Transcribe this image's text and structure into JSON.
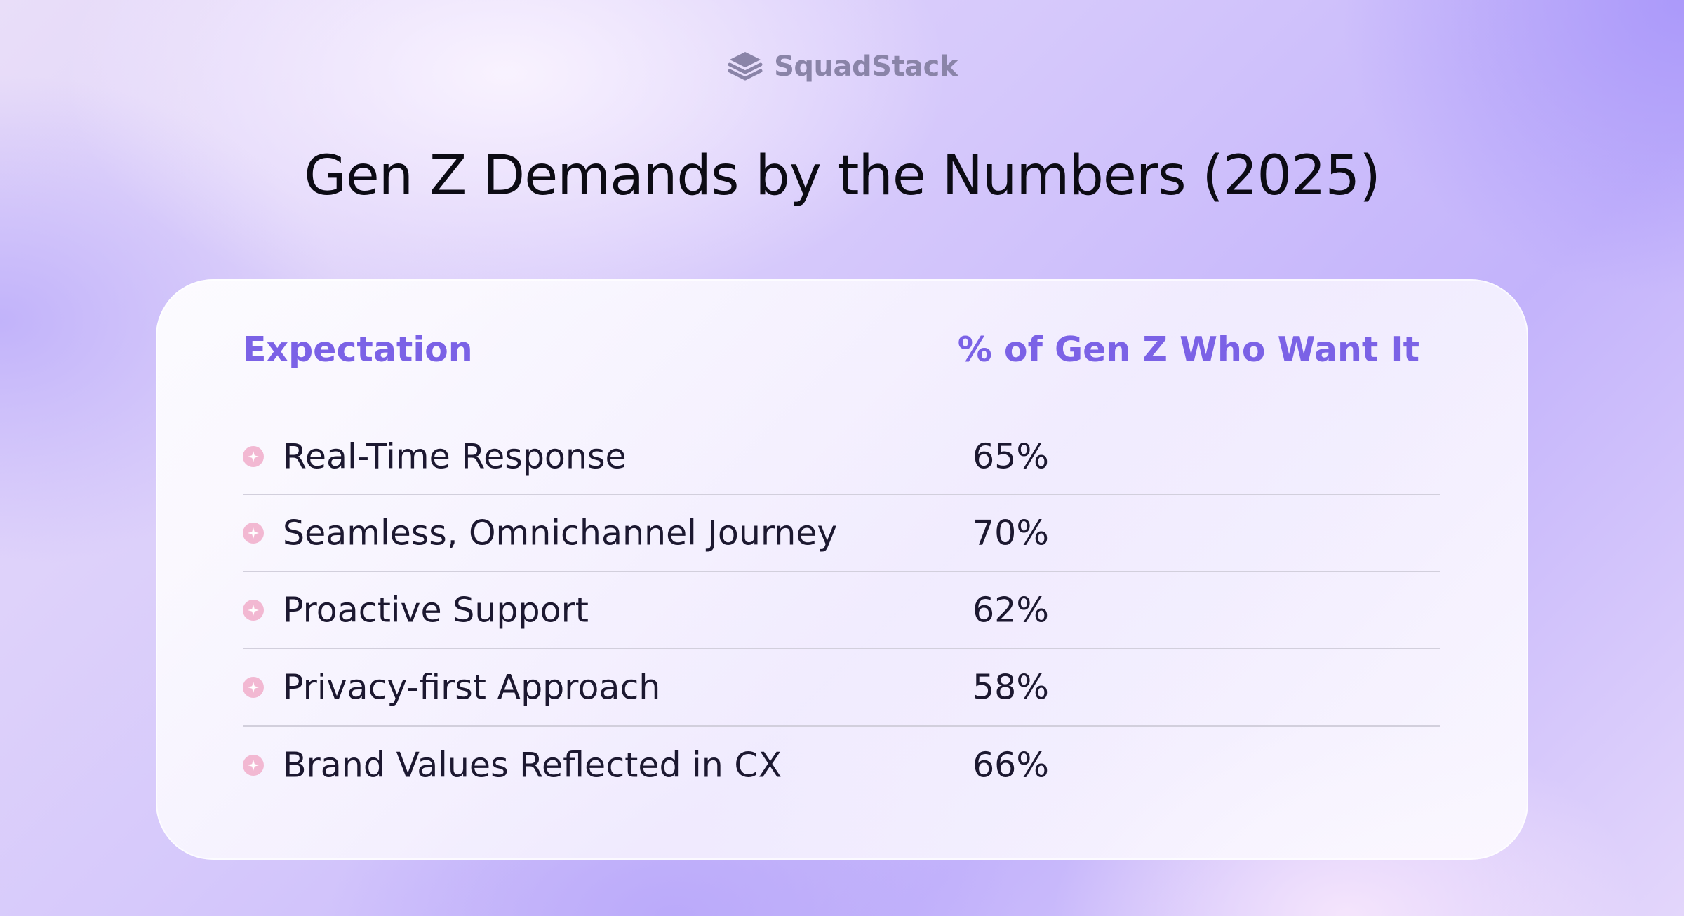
{
  "brand": {
    "name": "SquadStack",
    "logo_icon": "stacked-layers-icon",
    "color": "#8a84a8"
  },
  "page_title": "Gen Z Demands by the Numbers (2025)",
  "colors": {
    "header_accent": "#7b62e6",
    "bullet": "#f2b8d2",
    "text": "#1c1830"
  },
  "chart_data": {
    "type": "table",
    "title": "Gen Z Demands by the Numbers (2025)",
    "columns": [
      "Expectation",
      "% of Gen Z Who Want It"
    ],
    "rows": [
      {
        "expectation": "Real-Time Response",
        "value": "65%",
        "percent": 65
      },
      {
        "expectation": "Seamless, Omnichannel Journey",
        "value": "70%",
        "percent": 70
      },
      {
        "expectation": "Proactive Support",
        "value": "62%",
        "percent": 62
      },
      {
        "expectation": "Privacy-first Approach",
        "value": "58%",
        "percent": 58
      },
      {
        "expectation": "Brand Values Reflected in CX",
        "value": "66%",
        "percent": 66
      }
    ]
  }
}
